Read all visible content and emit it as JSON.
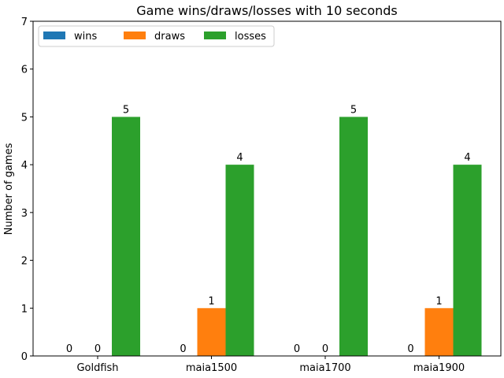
{
  "chart_data": {
    "type": "bar",
    "title": "Game wins/draws/losses with 10 seconds",
    "xlabel": "",
    "ylabel": "Number of games",
    "categories": [
      "Goldfish",
      "maia1500",
      "maia1700",
      "maia1900"
    ],
    "series": [
      {
        "name": "wins",
        "color": "#1f77b4",
        "values": [
          0,
          0,
          0,
          0
        ]
      },
      {
        "name": "draws",
        "color": "#ff7f0e",
        "values": [
          0,
          1,
          0,
          1
        ]
      },
      {
        "name": "losses",
        "color": "#2ca02c",
        "values": [
          5,
          4,
          5,
          4
        ]
      }
    ],
    "ylim": [
      0,
      7
    ],
    "yticks": [
      0,
      1,
      2,
      3,
      4,
      5,
      6,
      7
    ],
    "grid": false,
    "legend_position": "top-left"
  }
}
